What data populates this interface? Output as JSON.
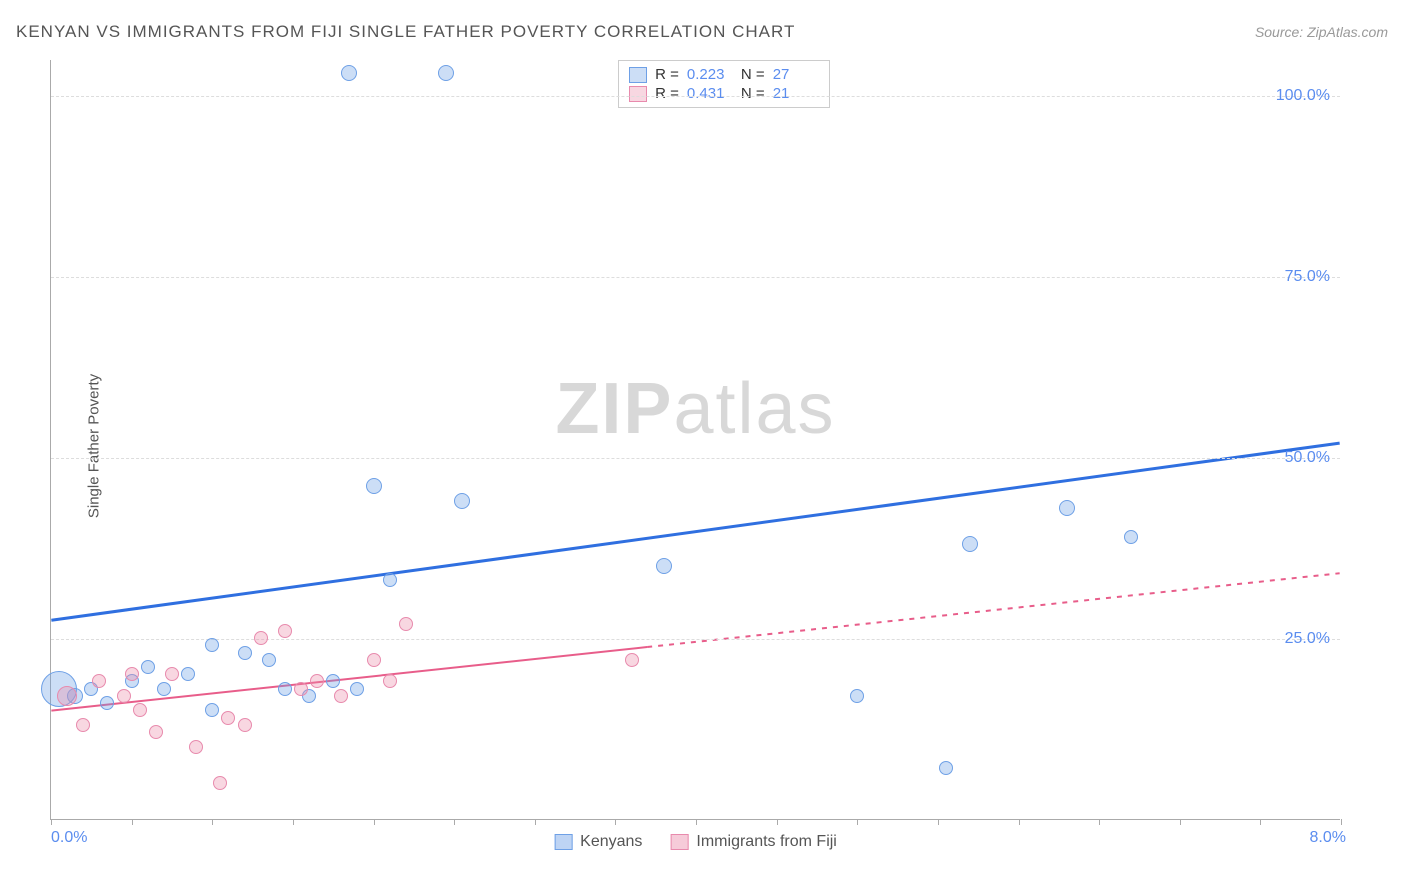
{
  "title": "KENYAN VS IMMIGRANTS FROM FIJI SINGLE FATHER POVERTY CORRELATION CHART",
  "source": "Source: ZipAtlas.com",
  "ylabel": "Single Father Poverty",
  "watermark_bold": "ZIP",
  "watermark_rest": "atlas",
  "chart": {
    "type": "scatter",
    "xlim": [
      0.0,
      8.0
    ],
    "ylim": [
      0.0,
      105.0
    ],
    "x_min_label": "0.0%",
    "x_max_label": "8.0%",
    "yticks": [
      25.0,
      50.0,
      75.0,
      100.0
    ],
    "ytick_labels": [
      "25.0%",
      "50.0%",
      "75.0%",
      "100.0%"
    ],
    "xtick_positions": [
      0.0,
      0.5,
      1.0,
      1.5,
      2.0,
      2.5,
      3.0,
      3.5,
      4.0,
      4.5,
      5.0,
      5.5,
      6.0,
      6.5,
      7.0,
      7.5,
      8.0
    ],
    "background_color": "#ffffff",
    "grid_color": "#dddddd",
    "axis_color": "#aaaaaa",
    "tick_label_color": "#5b8def"
  },
  "series": [
    {
      "key": "kenyans",
      "label": "Kenyans",
      "fill": "rgba(110,160,230,0.35)",
      "stroke": "#6ea0e6",
      "trend_color": "#2f6fe0",
      "trend_width": 3,
      "trend_dash": "none",
      "trend_extrap_dash": "6,5",
      "trend": {
        "x1": 0.0,
        "y1": 27.5,
        "x2": 8.0,
        "y2": 52.0
      },
      "extrapolate_from_x": null,
      "R": "0.223",
      "N": "27",
      "points": [
        {
          "x": 0.05,
          "y": 18,
          "r": 18
        },
        {
          "x": 0.15,
          "y": 17,
          "r": 8
        },
        {
          "x": 0.25,
          "y": 18,
          "r": 7
        },
        {
          "x": 0.35,
          "y": 16,
          "r": 7
        },
        {
          "x": 0.5,
          "y": 19,
          "r": 7
        },
        {
          "x": 0.6,
          "y": 21,
          "r": 7
        },
        {
          "x": 0.7,
          "y": 18,
          "r": 7
        },
        {
          "x": 0.85,
          "y": 20,
          "r": 7
        },
        {
          "x": 1.0,
          "y": 24,
          "r": 7
        },
        {
          "x": 1.0,
          "y": 15,
          "r": 7
        },
        {
          "x": 1.2,
          "y": 23,
          "r": 7
        },
        {
          "x": 1.35,
          "y": 22,
          "r": 7
        },
        {
          "x": 1.45,
          "y": 18,
          "r": 7
        },
        {
          "x": 1.6,
          "y": 17,
          "r": 7
        },
        {
          "x": 1.75,
          "y": 19,
          "r": 7
        },
        {
          "x": 1.9,
          "y": 18,
          "r": 7
        },
        {
          "x": 1.85,
          "y": 103,
          "r": 8
        },
        {
          "x": 2.0,
          "y": 46,
          "r": 8
        },
        {
          "x": 2.1,
          "y": 33,
          "r": 7
        },
        {
          "x": 2.45,
          "y": 103,
          "r": 8
        },
        {
          "x": 2.55,
          "y": 44,
          "r": 8
        },
        {
          "x": 3.8,
          "y": 35,
          "r": 8
        },
        {
          "x": 5.0,
          "y": 17,
          "r": 7
        },
        {
          "x": 5.55,
          "y": 7,
          "r": 7
        },
        {
          "x": 5.7,
          "y": 38,
          "r": 8
        },
        {
          "x": 6.3,
          "y": 43,
          "r": 8
        },
        {
          "x": 6.7,
          "y": 39,
          "r": 7
        }
      ]
    },
    {
      "key": "fiji",
      "label": "Immigrants from Fiji",
      "fill": "rgba(235,140,170,0.35)",
      "stroke": "#e88aad",
      "trend_color": "#e85d8a",
      "trend_width": 2,
      "trend_dash": "none",
      "trend_extrap_dash": "5,6",
      "trend": {
        "x1": 0.0,
        "y1": 15.0,
        "x2": 8.0,
        "y2": 34.0
      },
      "extrapolate_from_x": 3.7,
      "R": "0.431",
      "N": "21",
      "points": [
        {
          "x": 0.1,
          "y": 17,
          "r": 10
        },
        {
          "x": 0.2,
          "y": 13,
          "r": 7
        },
        {
          "x": 0.3,
          "y": 19,
          "r": 7
        },
        {
          "x": 0.45,
          "y": 17,
          "r": 7
        },
        {
          "x": 0.5,
          "y": 20,
          "r": 7
        },
        {
          "x": 0.55,
          "y": 15,
          "r": 7
        },
        {
          "x": 0.65,
          "y": 12,
          "r": 7
        },
        {
          "x": 0.75,
          "y": 20,
          "r": 7
        },
        {
          "x": 0.9,
          "y": 10,
          "r": 7
        },
        {
          "x": 1.05,
          "y": 5,
          "r": 7
        },
        {
          "x": 1.1,
          "y": 14,
          "r": 7
        },
        {
          "x": 1.2,
          "y": 13,
          "r": 7
        },
        {
          "x": 1.3,
          "y": 25,
          "r": 7
        },
        {
          "x": 1.45,
          "y": 26,
          "r": 7
        },
        {
          "x": 1.55,
          "y": 18,
          "r": 7
        },
        {
          "x": 1.65,
          "y": 19,
          "r": 7
        },
        {
          "x": 1.8,
          "y": 17,
          "r": 7
        },
        {
          "x": 2.0,
          "y": 22,
          "r": 7
        },
        {
          "x": 2.1,
          "y": 19,
          "r": 7
        },
        {
          "x": 2.2,
          "y": 27,
          "r": 7
        },
        {
          "x": 3.6,
          "y": 22,
          "r": 7
        }
      ]
    }
  ],
  "legend_bottom": [
    {
      "label": "Kenyans",
      "fill": "rgba(110,160,230,0.45)",
      "stroke": "#6ea0e6"
    },
    {
      "label": "Immigrants from Fiji",
      "fill": "rgba(235,140,170,0.45)",
      "stroke": "#e88aad"
    }
  ]
}
